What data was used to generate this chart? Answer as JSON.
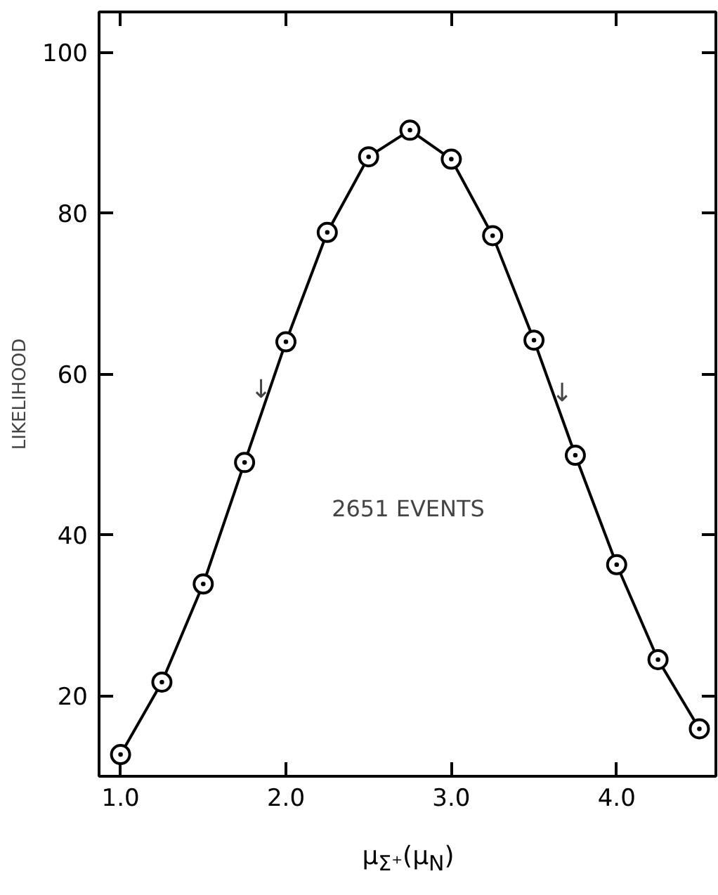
{
  "chart_data": {
    "type": "line",
    "xlabel": "μ$_{Σ⁺}$(μ$_{N}$)",
    "ylabel": "LIKELIHOOD",
    "series": [
      {
        "color": "#000000",
        "x": [
          1.0,
          1.25,
          1.5,
          1.75,
          2.0,
          2.25,
          2.5,
          2.75,
          3.0,
          3.25,
          3.5,
          3.75,
          4.0,
          4.25,
          4.5
        ],
        "values": [
          12.7,
          21.7,
          33.9,
          49.0,
          64.0,
          77.6,
          87.0,
          90.3,
          86.7,
          77.2,
          64.2,
          49.9,
          36.3,
          24.5,
          15.9
        ],
        "marker": "circle"
      }
    ],
    "annotations": [
      "2651 EVENTS",
      {
        "text": "↓",
        "x": 1.85,
        "y": 55
      },
      {
        "text": "↓",
        "x": 3.67,
        "y": 54.5
      }
    ],
    "xlim": [
      0.87,
      4.6
    ],
    "ylim": [
      10,
      105
    ],
    "xticks": [
      {
        "value": 1,
        "label": "1.0"
      },
      {
        "value": 2,
        "label": "2.0"
      },
      {
        "value": 3,
        "label": "3.0"
      },
      {
        "value": 4,
        "label": "4.0"
      }
    ],
    "yticks": [
      20,
      40,
      60,
      80,
      100
    ],
    "grid": false
  }
}
